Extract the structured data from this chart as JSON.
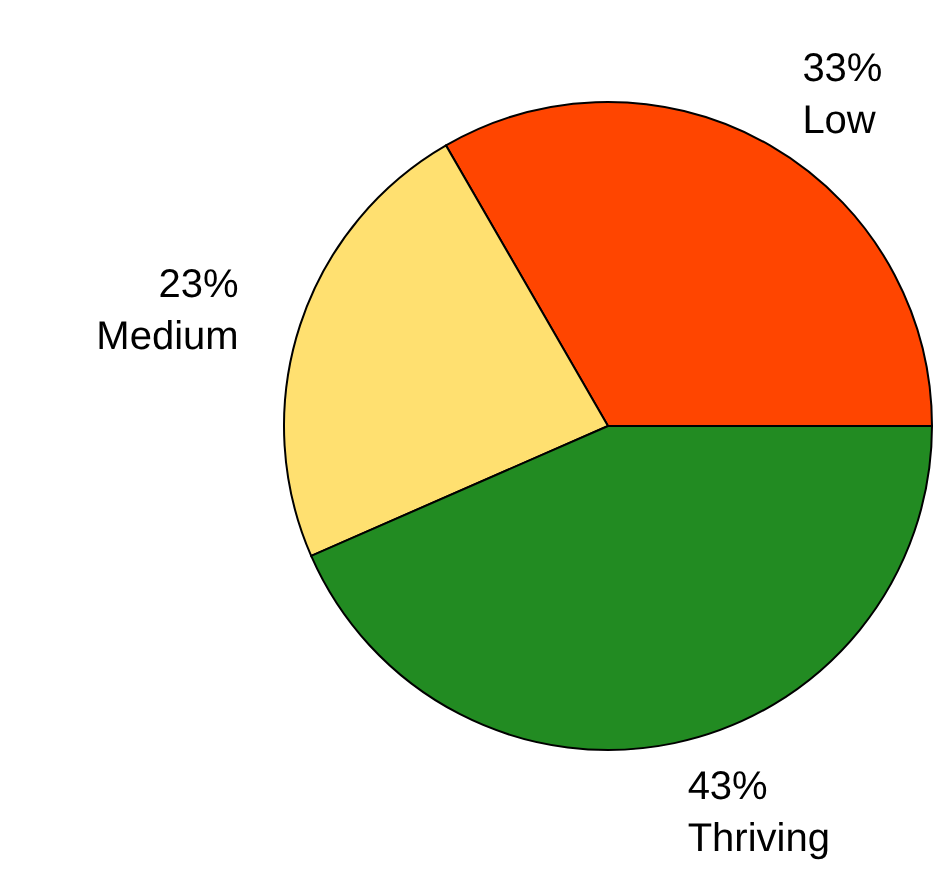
{
  "chart_data": {
    "type": "pie",
    "categories": [
      "Low",
      "Medium",
      "Thriving"
    ],
    "values": [
      33,
      23,
      43
    ],
    "value_labels": [
      "33%",
      "23%",
      "43%"
    ],
    "colors": [
      "#ff4500",
      "#ffe070",
      "#228b22"
    ]
  }
}
